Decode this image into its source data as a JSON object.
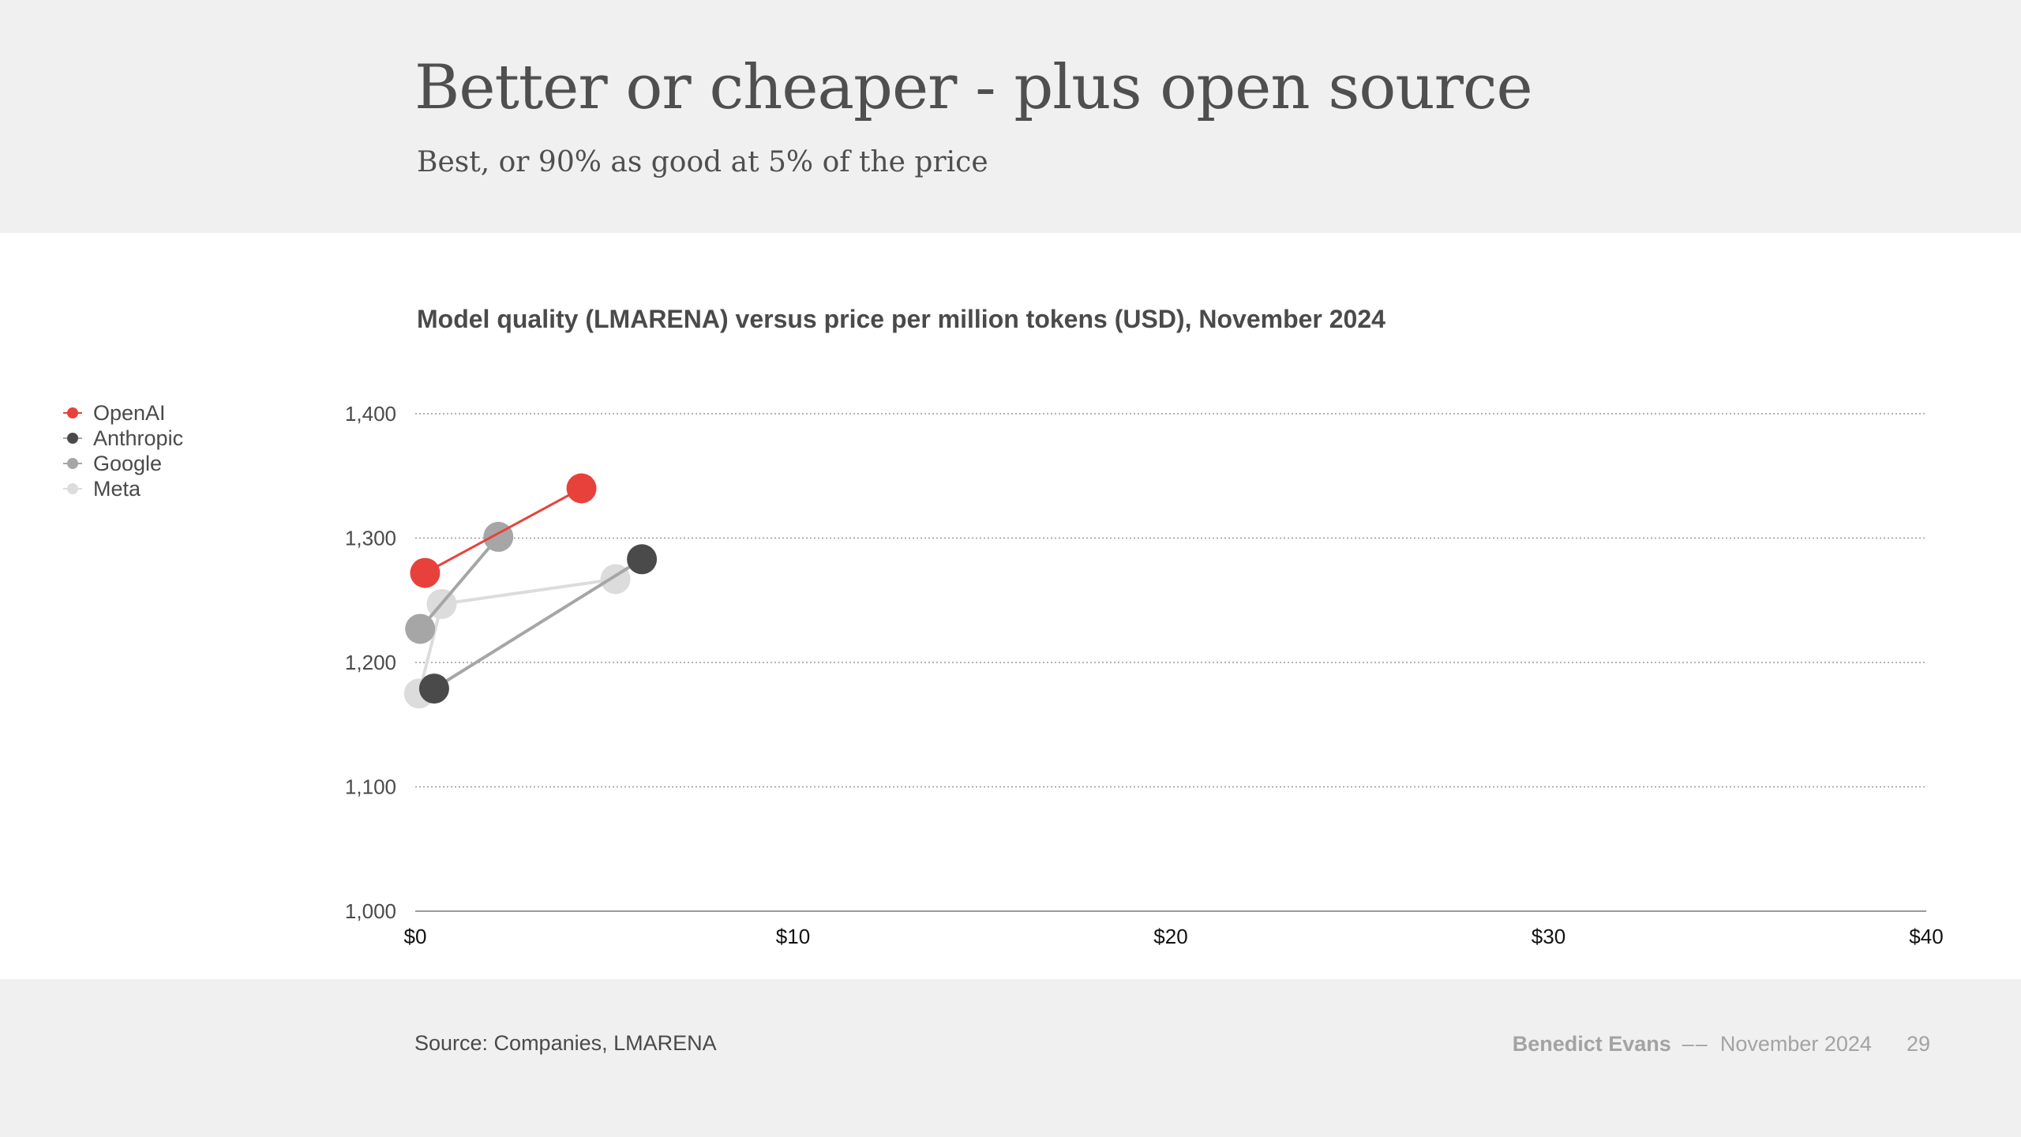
{
  "header": {
    "title": "Better or cheaper - plus open source",
    "subtitle": "Best, or 90% as good at 5% of the price"
  },
  "chart_data": {
    "type": "scatter",
    "title": "Model quality (LMARENA) versus price per million tokens (USD), November 2024",
    "xlabel": "",
    "ylabel": "",
    "xlim": [
      0,
      40
    ],
    "ylim": [
      1000,
      1400
    ],
    "x_ticks": [
      0,
      10,
      20,
      30,
      40
    ],
    "x_tick_labels": [
      "$0",
      "$10",
      "$20",
      "$30",
      "$40"
    ],
    "y_ticks": [
      1000,
      1100,
      1200,
      1300,
      1400
    ],
    "y_tick_labels": [
      "1,000",
      "1,100",
      "1,200",
      "1,300",
      "1,400"
    ],
    "grid": "horizontal dotted",
    "legend": "left",
    "series": [
      {
        "name": "OpenAI",
        "color": "#e8413b",
        "line_color": "#e8413b",
        "points": [
          {
            "x": 0.26,
            "y": 1272
          },
          {
            "x": 4.4,
            "y": 1340
          }
        ]
      },
      {
        "name": "Anthropic",
        "color": "#4a4a4a",
        "line_color": "#a6a6a6",
        "points": [
          {
            "x": 0.5,
            "y": 1179
          },
          {
            "x": 6.0,
            "y": 1283
          }
        ]
      },
      {
        "name": "Google",
        "color": "#a6a6a6",
        "line_color": "#a6a6a6",
        "points": [
          {
            "x": 0.13,
            "y": 1227
          },
          {
            "x": 2.2,
            "y": 1301
          }
        ]
      },
      {
        "name": "Meta",
        "color": "#dcdcdc",
        "line_color": "#dcdcdc",
        "points": [
          {
            "x": 0.1,
            "y": 1175
          },
          {
            "x": 0.7,
            "y": 1247
          },
          {
            "x": 5.3,
            "y": 1267
          }
        ]
      }
    ]
  },
  "footer": {
    "source": "Source: Companies, LMARENA",
    "author": "Benedict Evans",
    "separator": "––",
    "date": "November 2024",
    "page": "29"
  }
}
